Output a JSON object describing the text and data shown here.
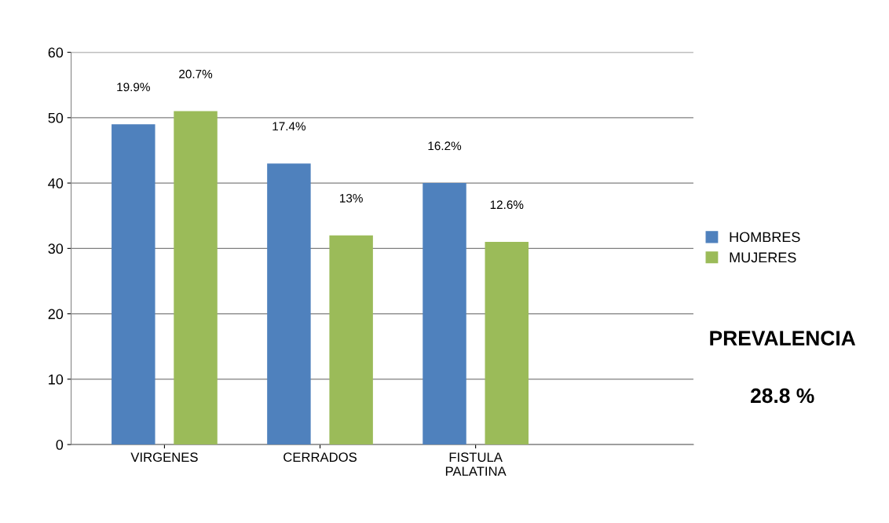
{
  "chart_data": {
    "type": "bar",
    "categories": [
      "VIRGENES",
      "CERRADOS",
      "FISTULA\nPALATINA"
    ],
    "series": [
      {
        "name": "HOMBRES",
        "color": "#4f81bd",
        "values": [
          49,
          43,
          40
        ]
      },
      {
        "name": "MUJERES",
        "color": "#9bbb59",
        "values": [
          51,
          32,
          31
        ]
      }
    ],
    "ylim": [
      0,
      60
    ],
    "yticks": [
      0,
      10,
      20,
      30,
      40,
      50,
      60
    ],
    "grid": "y",
    "legend": "right",
    "annotations": [
      "19.9%",
      "20.7%",
      "17.4%",
      "13%",
      "16.2%",
      "12.6%",
      "PREVALENCIA",
      "28.8 %"
    ]
  }
}
